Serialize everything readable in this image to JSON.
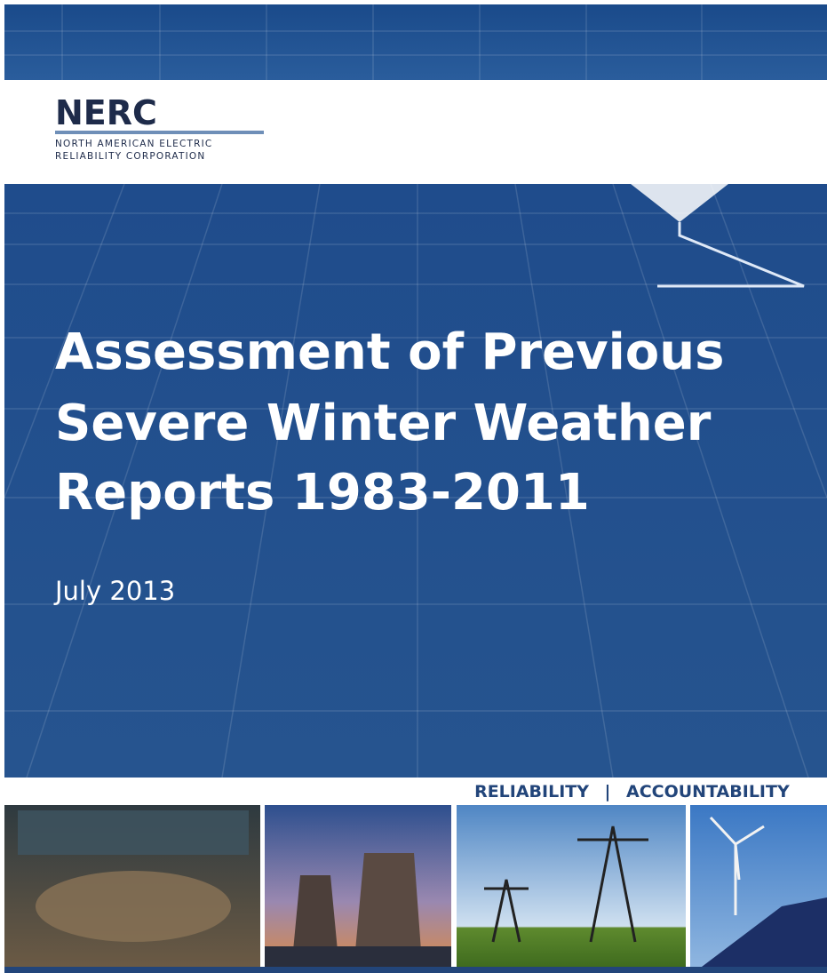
{
  "logo": {
    "name": "NERC",
    "subtitle_lines": [
      "NORTH AMERICAN ELECTRIC",
      "RELIABILITY CORPORATION"
    ]
  },
  "title_lines": [
    "Assessment of Previous",
    "Severe Winter Weather",
    "Reports 1983-2011"
  ],
  "date": "July 2013",
  "tagline": [
    "RELIABILITY",
    "|",
    "ACCOUNTABILITY"
  ]
}
